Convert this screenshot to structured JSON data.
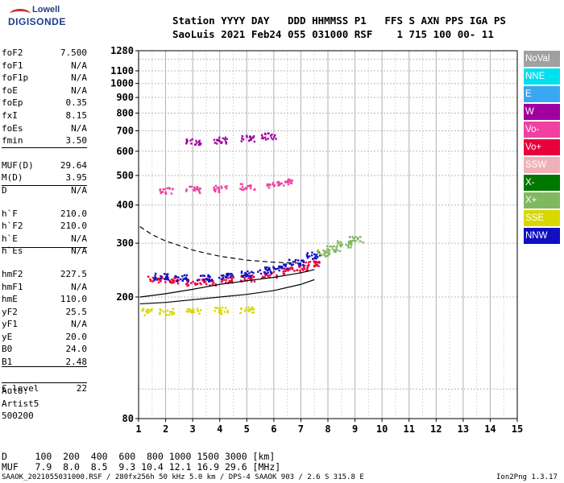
{
  "logo": {
    "line1": "Lowell",
    "line2": "DIGISONDE"
  },
  "header": {
    "line1": "Station YYYY DAY   DDD HHMMSS P1   FFS S AXN PPS IGA PS",
    "line2": "SaoLuis 2021 Feb24 055 031000 RSF    1 715 100 00- 11"
  },
  "params": [
    {
      "name": "foF2",
      "value": "7.500"
    },
    {
      "name": "foF1",
      "value": "N/A"
    },
    {
      "name": "foF1p",
      "value": "N/A"
    },
    {
      "name": "foE",
      "value": "N/A"
    },
    {
      "name": "foEp",
      "value": "0.35"
    },
    {
      "name": "fxI",
      "value": "8.15"
    },
    {
      "name": "foEs",
      "value": "N/A"
    },
    {
      "name": "fmin",
      "value": "3.50"
    },
    {
      "name": "MUF(D)",
      "value": "29.64"
    },
    {
      "name": "M(D)",
      "value": "3.95"
    },
    {
      "name": "D",
      "value": "N/A"
    },
    {
      "name": "h`F",
      "value": "210.0"
    },
    {
      "name": "h`F2",
      "value": "210.0"
    },
    {
      "name": "h`E",
      "value": "N/A"
    },
    {
      "name": "h`Es",
      "value": "N/A"
    },
    {
      "name": "hmF2",
      "value": "227.5"
    },
    {
      "name": "hmF1",
      "value": "N/A"
    },
    {
      "name": "hmE",
      "value": "110.0"
    },
    {
      "name": "yF2",
      "value": "25.5"
    },
    {
      "name": "yF1",
      "value": "N/A"
    },
    {
      "name": "yE",
      "value": "20.0"
    },
    {
      "name": "B0",
      "value": "24.0"
    },
    {
      "name": "B1",
      "value": "2.48"
    },
    {
      "name": "C-level",
      "value": "22"
    }
  ],
  "auto": {
    "line1": "Auto:",
    "line2": "Artist5",
    "line3": "500200"
  },
  "legend": [
    {
      "label": "NoVal",
      "color": "#a0a0a0"
    },
    {
      "label": "NNE",
      "color": "#00e0f0"
    },
    {
      "label": "E",
      "color": "#3aa8f0"
    },
    {
      "label": "W",
      "color": "#a000a0"
    },
    {
      "label": "Vo-",
      "color": "#f040a0"
    },
    {
      "label": "Vo+",
      "color": "#e8003c"
    },
    {
      "label": "SSW",
      "color": "#f0b0b8"
    },
    {
      "label": "X-",
      "color": "#007800"
    },
    {
      "label": "X+",
      "color": "#80b860"
    },
    {
      "label": "SSE",
      "color": "#d8d800"
    },
    {
      "label": "NNW",
      "color": "#1010c0"
    }
  ],
  "footer": {
    "line1": "D     100  200  400  600  800 1000 1500 3000 [km]",
    "line2": "MUF   7.9  8.0  8.5  9.3 10.4 12.1 16.9 29.6 [MHz]",
    "line3": "SAAOK_2021055031000.RSF / 280fx256h 50 kHz 5.0 km / DPS-4 SAAOK 903 / 2.6 S 315.8 E",
    "version": "Ion2Png 1.3.17"
  },
  "chart_data": {
    "type": "scatter",
    "xlim": [
      1,
      15
    ],
    "ylim": [
      80,
      1280
    ],
    "y_scale": "log",
    "x_ticks": [
      "1",
      "2",
      "3",
      "4",
      "5",
      "6",
      "7",
      "8",
      "9",
      "10",
      "11",
      "12",
      "13",
      "14",
      "15"
    ],
    "y_ticks": [
      {
        "v": 80,
        "label": "80"
      },
      {
        "v": 200,
        "label": "200"
      },
      {
        "v": 300,
        "label": "300"
      },
      {
        "v": 400,
        "label": "400"
      },
      {
        "v": 500,
        "label": "500"
      },
      {
        "v": 600,
        "label": "600"
      },
      {
        "v": 700,
        "label": "700"
      },
      {
        "v": 800,
        "label": "800"
      },
      {
        "v": 900,
        "label": "900"
      },
      {
        "v": 1000,
        "label": "1000"
      },
      {
        "v": 1100,
        "label": "1100"
      },
      {
        "v": 1280,
        "label": "1280"
      }
    ],
    "grid": true,
    "traces": [
      {
        "name": "F2 O-trace (Vo+)",
        "color": "#e8003c",
        "x": [
          1.6,
          2.2,
          3.0,
          3.6,
          4.2,
          5.0,
          5.8,
          6.4,
          7.0,
          7.4
        ],
        "y": [
          230,
          228,
          225,
          225,
          228,
          232,
          238,
          245,
          250,
          260
        ]
      },
      {
        "name": "F2 X-trace (NNW)",
        "color": "#1010c0",
        "x": [
          1.8,
          2.6,
          3.4,
          4.2,
          5.0,
          5.6,
          6.2,
          6.8,
          7.4
        ],
        "y": [
          235,
          232,
          232,
          236,
          240,
          246,
          252,
          262,
          275
        ]
      },
      {
        "name": "2nd hop (Vo-)",
        "color": "#f040a0",
        "x": [
          2.0,
          3.0,
          4.0,
          5.0,
          6.0,
          6.4
        ],
        "y": [
          450,
          452,
          455,
          462,
          470,
          478
        ]
      },
      {
        "name": "3rd hop (W)",
        "color": "#a000a0",
        "x": [
          3.0,
          4.0,
          5.0,
          5.8
        ],
        "y": [
          650,
          655,
          665,
          675
        ]
      },
      {
        "name": "Es (SSE)",
        "color": "#d8d800",
        "x": [
          1.2,
          2.0,
          3.0,
          4.0,
          5.0
        ],
        "y": [
          180,
          180,
          181,
          182,
          182
        ]
      },
      {
        "name": "upper spread (X+)",
        "color": "#80b860",
        "x": [
          7.8,
          8.2,
          8.6,
          9.0
        ],
        "y": [
          280,
          290,
          300,
          310
        ]
      }
    ],
    "profile_curves": [
      {
        "style": "solid",
        "x": [
          1.05,
          2,
          3,
          4,
          5,
          6,
          7,
          7.5
        ],
        "y": [
          190,
          192,
          196,
          200,
          204,
          210,
          220,
          228
        ]
      },
      {
        "style": "solid",
        "x": [
          1.05,
          2,
          3,
          4,
          5,
          6,
          7,
          7.5
        ],
        "y": [
          200,
          205,
          212,
          220,
          226,
          232,
          240,
          246
        ]
      },
      {
        "style": "dashed",
        "x": [
          1.05,
          1.5,
          2,
          2.5,
          3,
          3.5,
          4,
          4.5,
          5,
          5.5,
          6,
          6.5,
          7
        ],
        "y": [
          340,
          320,
          305,
          295,
          285,
          278,
          272,
          268,
          264,
          262,
          260,
          259,
          258
        ]
      }
    ]
  }
}
